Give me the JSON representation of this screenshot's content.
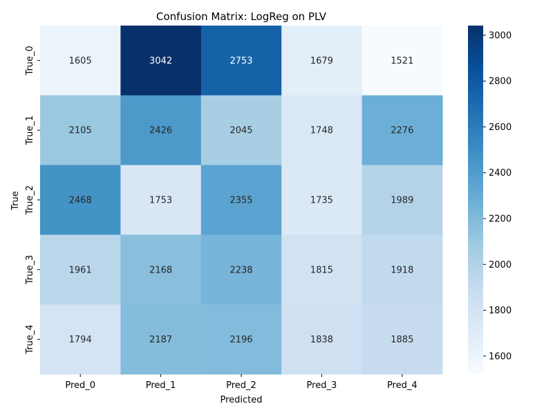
{
  "chart_data": {
    "type": "heatmap",
    "title": "Confusion Matrix: LogReg on PLV",
    "xlabel": "Predicted",
    "ylabel": "True",
    "x_categories": [
      "Pred_0",
      "Pred_1",
      "Pred_2",
      "Pred_3",
      "Pred_4"
    ],
    "y_categories": [
      "True_0",
      "True_1",
      "True_2",
      "True_3",
      "True_4"
    ],
    "values": [
      [
        1605,
        3042,
        2753,
        1679,
        1521
      ],
      [
        2105,
        2426,
        2045,
        1748,
        2276
      ],
      [
        2468,
        1753,
        2355,
        1735,
        1989
      ],
      [
        1961,
        2168,
        2238,
        1815,
        1918
      ],
      [
        1794,
        2187,
        2196,
        1838,
        1885
      ]
    ],
    "colorbar": {
      "range": [
        1521,
        3042
      ],
      "ticks": [
        1600,
        1800,
        2000,
        2200,
        2400,
        2600,
        2800,
        3000
      ],
      "colormap": "Blues"
    },
    "grid": false,
    "legend": "colorbar-right"
  }
}
